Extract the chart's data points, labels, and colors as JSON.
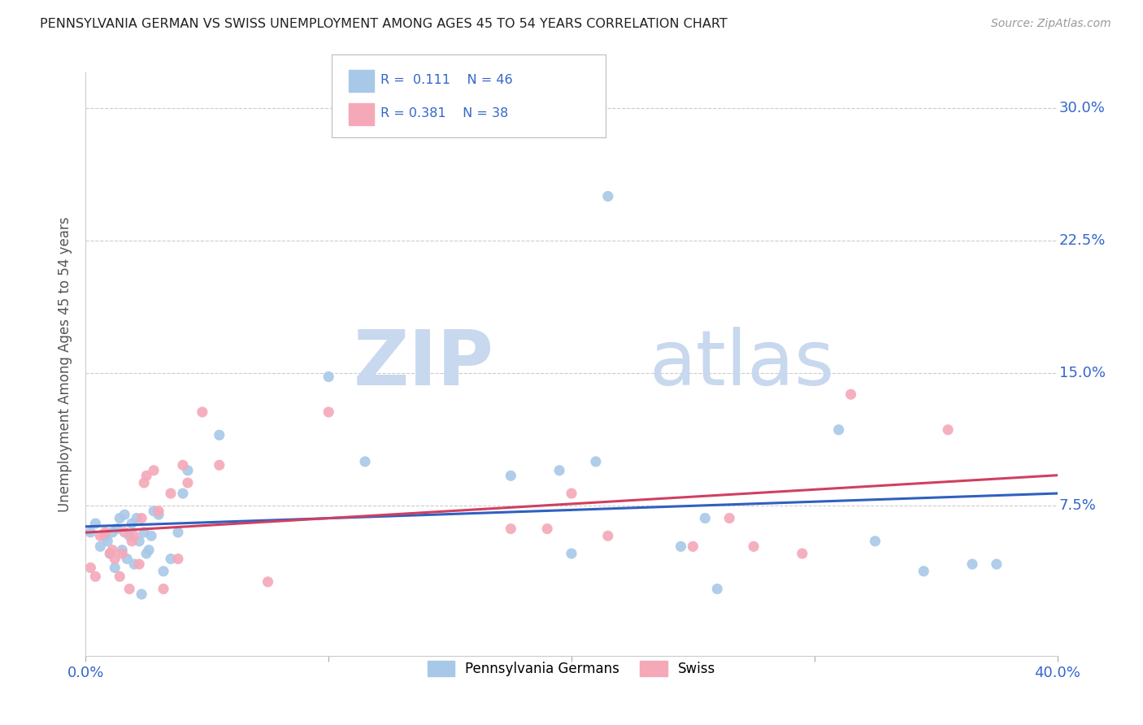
{
  "title": "PENNSYLVANIA GERMAN VS SWISS UNEMPLOYMENT AMONG AGES 45 TO 54 YEARS CORRELATION CHART",
  "source": "Source: ZipAtlas.com",
  "ylabel": "Unemployment Among Ages 45 to 54 years",
  "xlim": [
    0.0,
    0.4
  ],
  "ylim": [
    -0.01,
    0.32
  ],
  "xticks": [
    0.0,
    0.1,
    0.2,
    0.3,
    0.4
  ],
  "xtick_labels": [
    "0.0%",
    "",
    "",
    "",
    "40.0%"
  ],
  "ytick_vals": [
    0.0,
    0.075,
    0.15,
    0.225,
    0.3
  ],
  "ytick_labels_right": [
    "",
    "7.5%",
    "15.0%",
    "22.5%",
    "30.0%"
  ],
  "grid_vals": [
    0.075,
    0.15,
    0.225,
    0.3
  ],
  "r_penn": 0.111,
  "n_penn": 46,
  "r_swiss": 0.381,
  "n_swiss": 38,
  "legend_label_penn": "Pennsylvania Germans",
  "legend_label_swiss": "Swiss",
  "color_penn": "#a8c8e8",
  "color_swiss": "#f4a8b8",
  "line_color_penn": "#3060c0",
  "line_color_swiss": "#d04060",
  "watermark_zip": "ZIP",
  "watermark_atlas": "atlas",
  "penn_x": [
    0.002,
    0.004,
    0.006,
    0.008,
    0.009,
    0.01,
    0.011,
    0.012,
    0.013,
    0.014,
    0.015,
    0.016,
    0.017,
    0.018,
    0.019,
    0.02,
    0.021,
    0.022,
    0.023,
    0.024,
    0.025,
    0.026,
    0.027,
    0.028,
    0.03,
    0.032,
    0.035,
    0.038,
    0.04,
    0.042,
    0.055,
    0.1,
    0.115,
    0.175,
    0.195,
    0.2,
    0.21,
    0.215,
    0.245,
    0.255,
    0.26,
    0.31,
    0.325,
    0.345,
    0.365,
    0.375
  ],
  "penn_y": [
    0.06,
    0.065,
    0.052,
    0.058,
    0.055,
    0.048,
    0.06,
    0.04,
    0.062,
    0.068,
    0.05,
    0.07,
    0.045,
    0.058,
    0.065,
    0.042,
    0.068,
    0.055,
    0.025,
    0.06,
    0.048,
    0.05,
    0.058,
    0.072,
    0.07,
    0.038,
    0.045,
    0.06,
    0.082,
    0.095,
    0.115,
    0.148,
    0.1,
    0.092,
    0.095,
    0.048,
    0.1,
    0.25,
    0.052,
    0.068,
    0.028,
    0.118,
    0.055,
    0.038,
    0.042,
    0.042
  ],
  "swiss_x": [
    0.002,
    0.004,
    0.006,
    0.008,
    0.01,
    0.011,
    0.012,
    0.014,
    0.015,
    0.016,
    0.018,
    0.019,
    0.02,
    0.022,
    0.023,
    0.024,
    0.025,
    0.028,
    0.03,
    0.032,
    0.035,
    0.038,
    0.04,
    0.042,
    0.048,
    0.055,
    0.075,
    0.1,
    0.175,
    0.19,
    0.2,
    0.215,
    0.25,
    0.265,
    0.275,
    0.295,
    0.315,
    0.355
  ],
  "swiss_y": [
    0.04,
    0.035,
    0.058,
    0.06,
    0.048,
    0.05,
    0.045,
    0.035,
    0.048,
    0.06,
    0.028,
    0.055,
    0.058,
    0.042,
    0.068,
    0.088,
    0.092,
    0.095,
    0.072,
    0.028,
    0.082,
    0.045,
    0.098,
    0.088,
    0.128,
    0.098,
    0.032,
    0.128,
    0.062,
    0.062,
    0.082,
    0.058,
    0.052,
    0.068,
    0.052,
    0.048,
    0.138,
    0.118
  ]
}
